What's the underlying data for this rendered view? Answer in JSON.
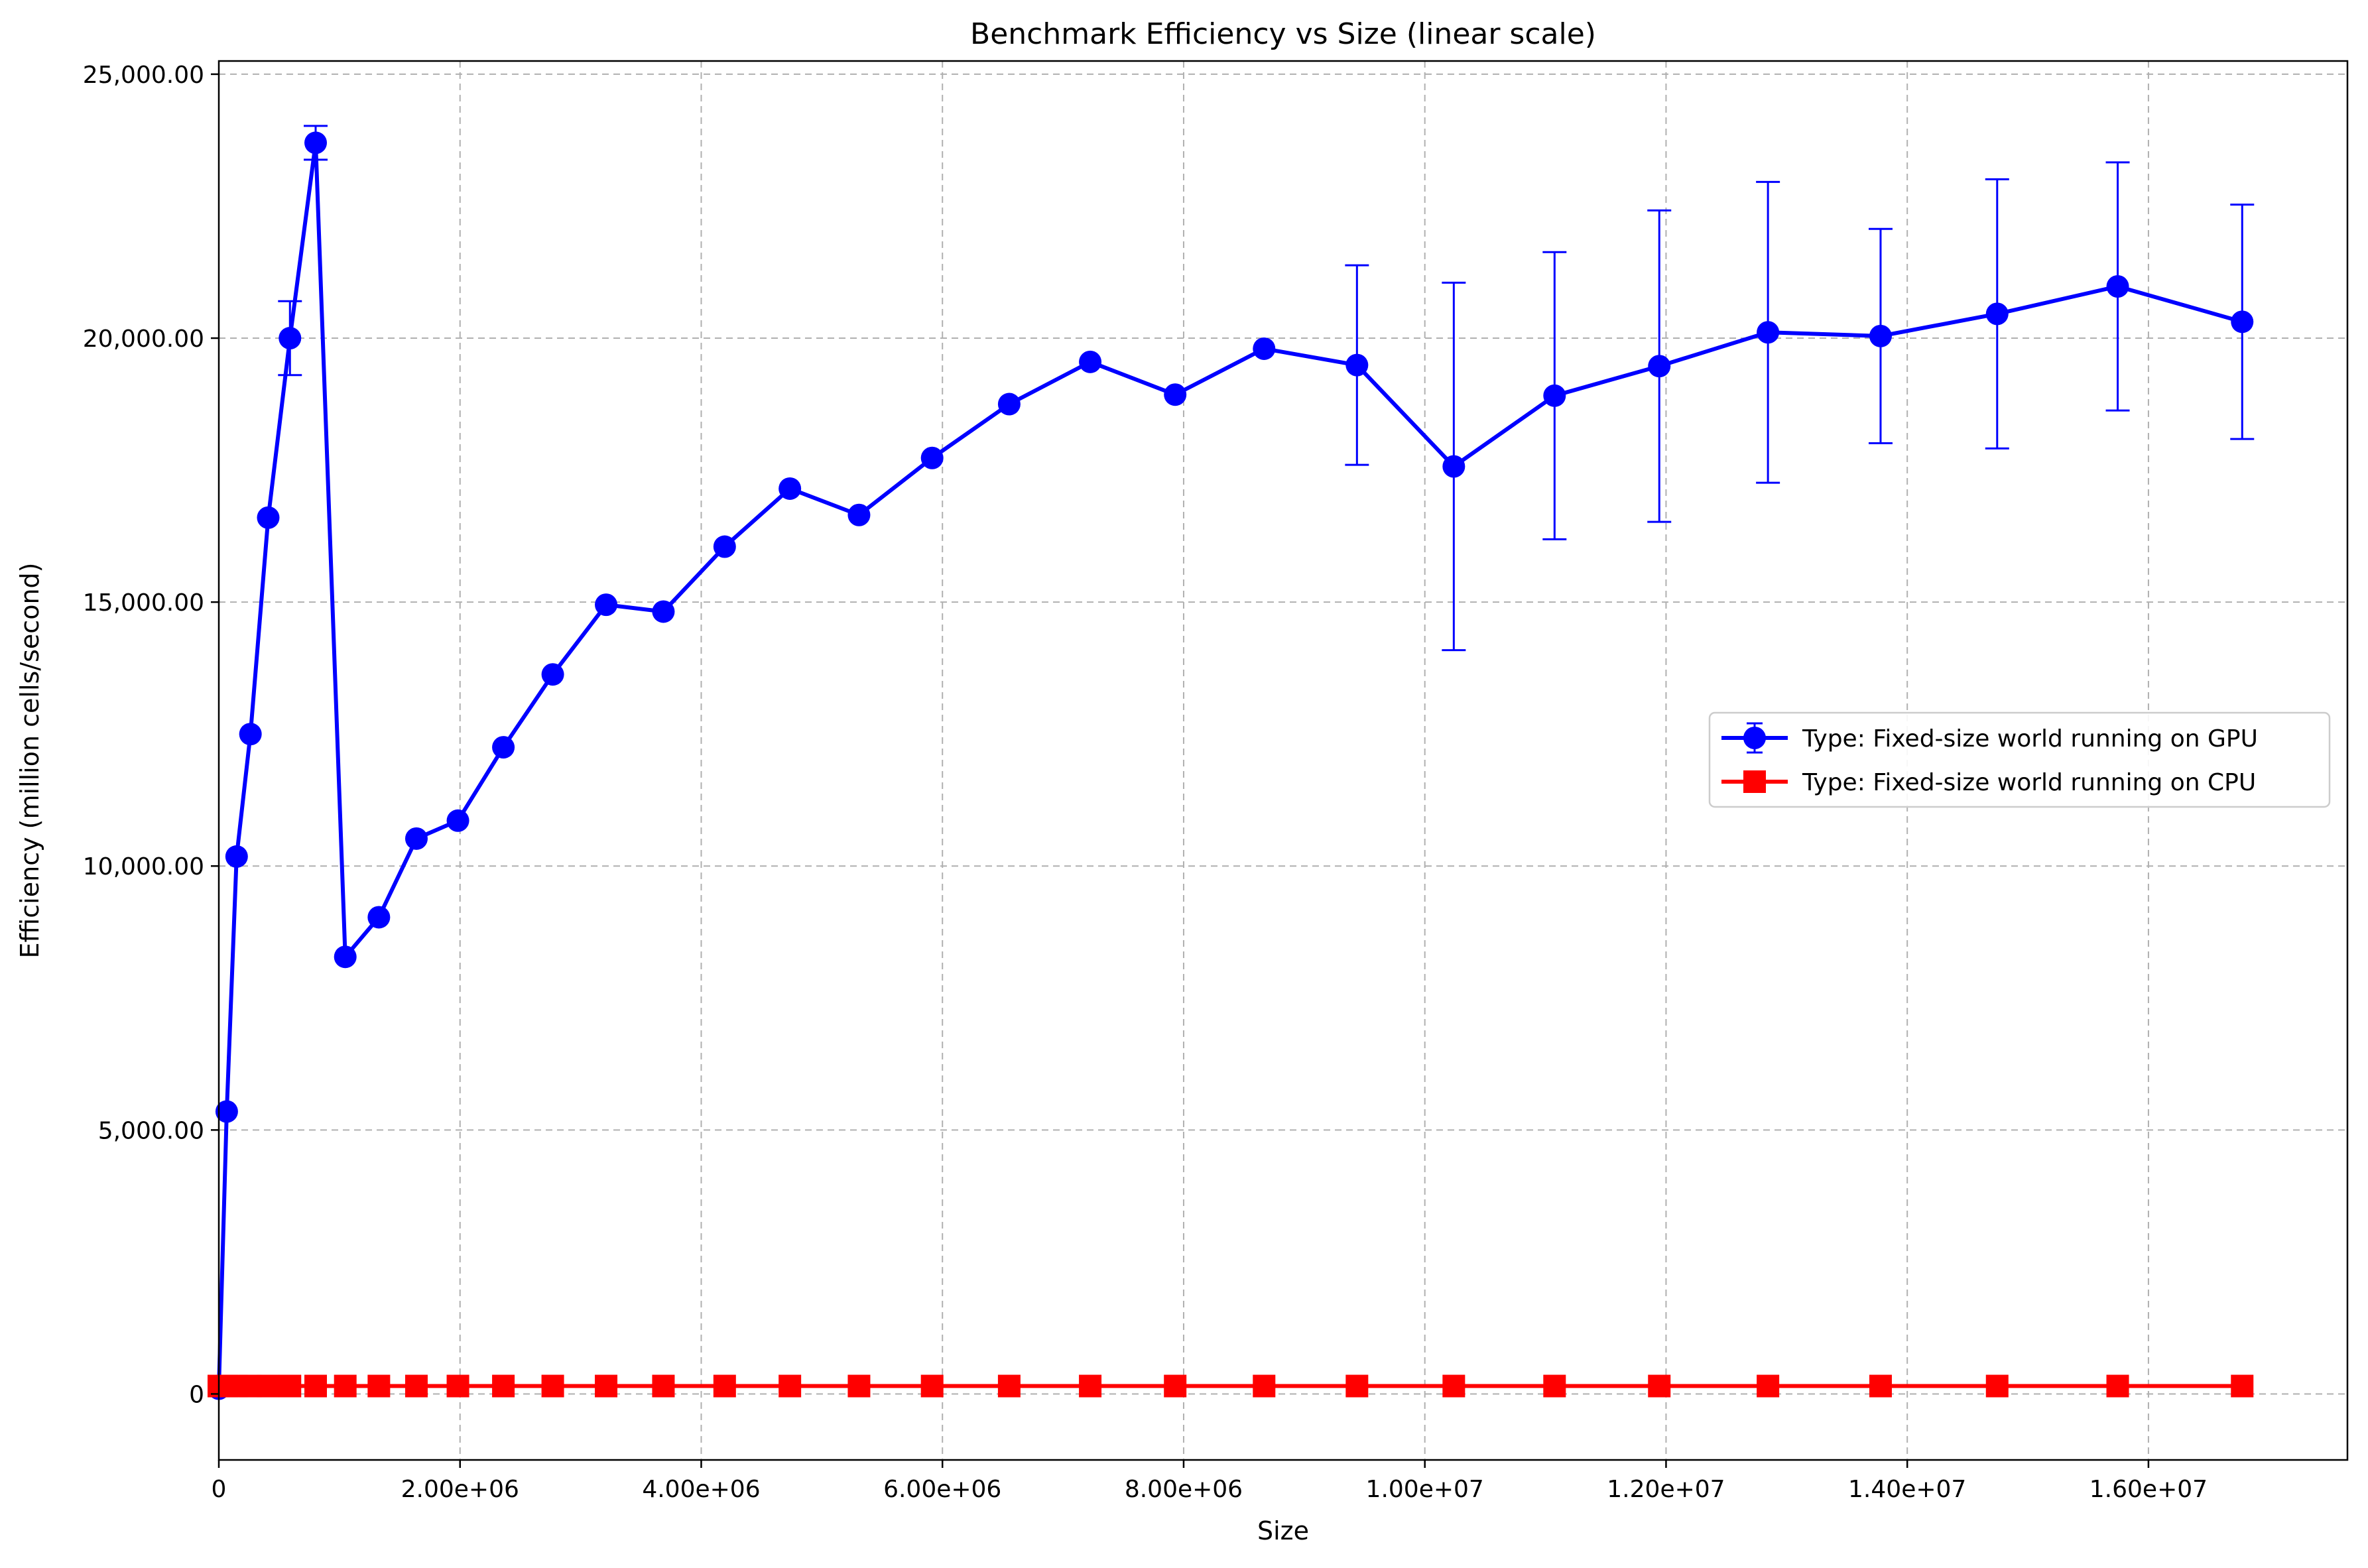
{
  "chart_data": {
    "type": "line",
    "title": "Benchmark Efficiency vs Size (linear scale)",
    "xlabel": "Size",
    "ylabel": "Efficiency (million cells/second)",
    "xlim": [
      0,
      17650000
    ],
    "ylim": [
      -1250,
      25250
    ],
    "xticks": [
      0,
      2000000,
      4000000,
      6000000,
      8000000,
      10000000,
      12000000,
      14000000,
      16000000
    ],
    "xtick_labels": [
      "0",
      "2.00e+06",
      "4.00e+06",
      "6.00e+06",
      "8.00e+06",
      "1.00e+07",
      "1.20e+07",
      "1.40e+07",
      "1.60e+07"
    ],
    "yticks": [
      0,
      5000,
      10000,
      15000,
      20000,
      25000
    ],
    "ytick_labels": [
      "0",
      "5,000.00",
      "10,000.00",
      "15,000.00",
      "20,000.00",
      "25,000.00"
    ],
    "grid": true,
    "legend_position": "center-right",
    "series": [
      {
        "name": "Type: Fixed-size world running on GPU",
        "color": "#0000ff",
        "marker": "circle",
        "x": [
          0,
          65536,
          147456,
          262144,
          409600,
          589824,
          802816,
          1048576,
          1327104,
          1638400,
          1982464,
          2359296,
          2768896,
          3211264,
          3686400,
          4194304,
          4734976,
          5308416,
          5914624,
          6553600,
          7225344,
          7929856,
          8667136,
          9437184,
          10240000,
          11075584,
          11943936,
          12845056,
          13778944,
          14745600,
          15745024,
          16777216
        ],
        "y": [
          100,
          5350,
          10180,
          12500,
          16600,
          20000,
          23700,
          8280,
          9030,
          10520,
          10860,
          12250,
          13630,
          14950,
          14820,
          16050,
          17150,
          16650,
          17730,
          18750,
          19550,
          18930,
          19800,
          19490,
          17570,
          18910,
          19470,
          20110,
          20040,
          20460,
          20980,
          20310
        ],
        "error": [
          0,
          0,
          0,
          0,
          0,
          700,
          320,
          0,
          0,
          0,
          0,
          0,
          0,
          0,
          0,
          0,
          0,
          0,
          0,
          0,
          0,
          0,
          0,
          1890,
          3480,
          2720,
          2950,
          2850,
          2030,
          2550,
          2350,
          2220
        ]
      },
      {
        "name": "Type: Fixed-size world running on CPU",
        "color": "#ff0000",
        "marker": "square",
        "x": [
          0,
          65536,
          147456,
          262144,
          409600,
          589824,
          802816,
          1048576,
          1327104,
          1638400,
          1982464,
          2359296,
          2768896,
          3211264,
          3686400,
          4194304,
          4734976,
          5308416,
          5914624,
          6553600,
          7225344,
          7929856,
          8667136,
          9437184,
          10240000,
          11075584,
          11943936,
          12845056,
          13778944,
          14745600,
          15745024,
          16777216
        ],
        "y": [
          150,
          150,
          150,
          150,
          150,
          150,
          150,
          150,
          150,
          150,
          150,
          150,
          150,
          150,
          150,
          150,
          150,
          150,
          150,
          150,
          150,
          150,
          150,
          150,
          150,
          150,
          150,
          150,
          150,
          150,
          150,
          150
        ],
        "error": [
          0,
          0,
          0,
          0,
          0,
          0,
          0,
          0,
          0,
          0,
          0,
          0,
          0,
          0,
          0,
          0,
          0,
          0,
          0,
          0,
          0,
          0,
          0,
          0,
          0,
          0,
          0,
          0,
          0,
          0,
          0,
          0
        ]
      }
    ]
  }
}
